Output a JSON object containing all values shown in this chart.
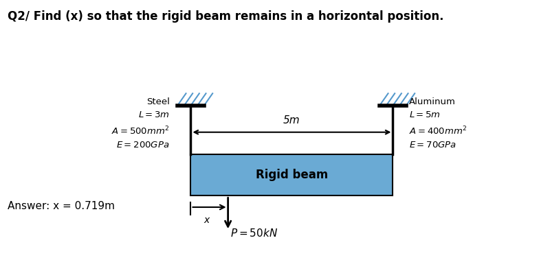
{
  "title": "Q2/ Find (x) so that the rigid beam remains in a horizontal position.",
  "title_fontsize": 12,
  "answer_label": "Answer: x = 0.719m",
  "beam_label": "Rigid beam",
  "span_label": "5m",
  "load_label": "$P = 50kN$",
  "x_label": "x",
  "beam_color": "#6aaad4",
  "bg_color": "#ffffff",
  "steel_text": "Steel\n$L = 3m$\n$A = 500mm^2$\n$E = 200GPa$",
  "alum_text": "Aluminum\n$L = 5m$\n$A = 400mm^2$\n$E = 70GPa$"
}
